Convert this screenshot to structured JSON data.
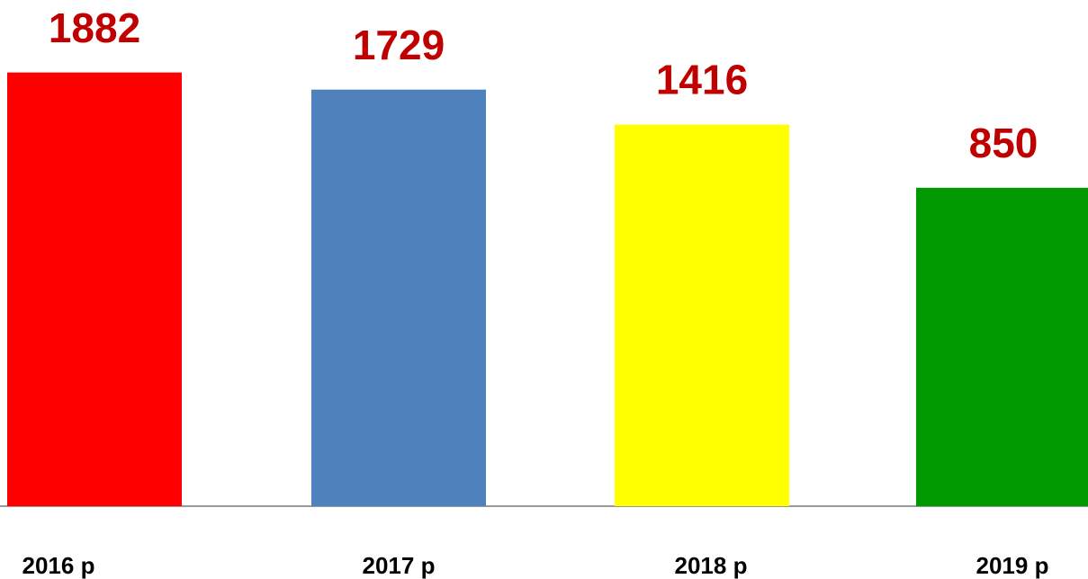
{
  "chart_data": {
    "type": "bar",
    "categories": [
      "2016 p",
      "2017 p",
      "2018 p",
      "2019 p"
    ],
    "values": [
      1882,
      1729,
      1416,
      850
    ],
    "colors": [
      "#ff0000",
      "#4f81bd",
      "#ffff00",
      "#009900"
    ],
    "ylim": [
      -2000,
      2000
    ],
    "grid": false
  }
}
